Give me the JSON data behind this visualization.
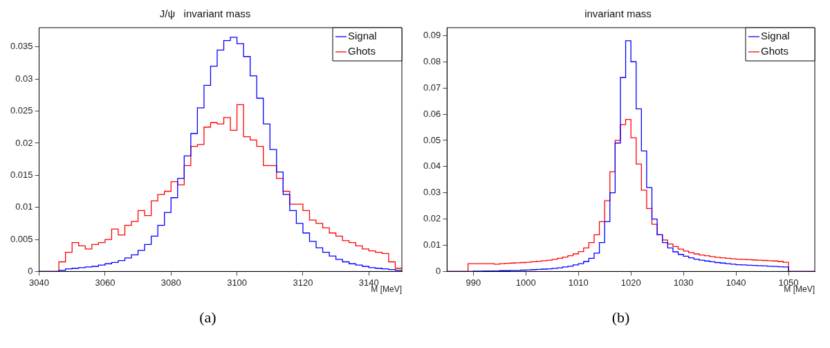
{
  "chart_data": [
    {
      "type": "histogram",
      "title": "J/ψ   invariant mass",
      "xlabel": "M [MeV]",
      "legend": "top right",
      "annotations": [
        "(a)"
      ],
      "xlim": [
        3040,
        3150
      ],
      "xticks": [
        3040,
        3060,
        3080,
        3100,
        3120,
        3140
      ],
      "ylim": [
        0,
        0.038
      ],
      "yticks": [
        0,
        0.005,
        0.01,
        0.015,
        0.02,
        0.025,
        0.03,
        0.035
      ],
      "bins": [
        3040,
        3042,
        3044,
        3046,
        3048,
        3050,
        3052,
        3054,
        3056,
        3058,
        3060,
        3062,
        3064,
        3066,
        3068,
        3070,
        3072,
        3074,
        3076,
        3078,
        3080,
        3082,
        3084,
        3086,
        3088,
        3090,
        3092,
        3094,
        3096,
        3098,
        3100,
        3102,
        3104,
        3106,
        3108,
        3110,
        3112,
        3114,
        3116,
        3118,
        3120,
        3122,
        3124,
        3126,
        3128,
        3130,
        3132,
        3134,
        3136,
        3138,
        3140,
        3142,
        3144,
        3146,
        3148,
        3150
      ],
      "series": [
        {
          "name": "Signal",
          "color": "#0000ff",
          "values": [
            0,
            0,
            0,
            0.0002,
            0.0004,
            0.0005,
            0.0006,
            0.0007,
            0.0008,
            0.001,
            0.0012,
            0.0014,
            0.0017,
            0.0021,
            0.0026,
            0.0033,
            0.0042,
            0.0055,
            0.0072,
            0.0092,
            0.0115,
            0.0145,
            0.018,
            0.0215,
            0.0255,
            0.029,
            0.032,
            0.0345,
            0.036,
            0.0365,
            0.0355,
            0.0335,
            0.0305,
            0.027,
            0.023,
            0.019,
            0.0155,
            0.012,
            0.0095,
            0.0075,
            0.006,
            0.0047,
            0.0037,
            0.003,
            0.0024,
            0.0019,
            0.0015,
            0.0012,
            0.001,
            0.0008,
            0.0006,
            0.0005,
            0.0004,
            0.0003,
            0.0002
          ]
        },
        {
          "name": "Ghots",
          "color": "#ff0000",
          "values": [
            0,
            0,
            0,
            0.0015,
            0.003,
            0.0045,
            0.004,
            0.0035,
            0.0042,
            0.0045,
            0.005,
            0.0066,
            0.0057,
            0.0072,
            0.0078,
            0.0095,
            0.0087,
            0.011,
            0.012,
            0.0125,
            0.014,
            0.0135,
            0.0165,
            0.0195,
            0.0198,
            0.0225,
            0.0232,
            0.023,
            0.024,
            0.022,
            0.026,
            0.021,
            0.0205,
            0.0195,
            0.0165,
            0.0165,
            0.0145,
            0.0125,
            0.0105,
            0.0105,
            0.0095,
            0.008,
            0.0075,
            0.0068,
            0.006,
            0.0055,
            0.0048,
            0.0045,
            0.004,
            0.0035,
            0.0032,
            0.003,
            0.0028,
            0.0015,
            0.0005
          ]
        }
      ]
    },
    {
      "type": "histogram",
      "title": "invariant mass",
      "xlabel": "M [MeV]",
      "legend": "top right",
      "annotations": [
        "(b)"
      ],
      "xlim": [
        985,
        1055
      ],
      "xticks": [
        990,
        1000,
        1010,
        1020,
        1030,
        1040,
        1050
      ],
      "ylim": [
        0,
        0.093
      ],
      "yticks": [
        0,
        0.01,
        0.02,
        0.03,
        0.04,
        0.05,
        0.06,
        0.07,
        0.08,
        0.09
      ],
      "bins": [
        985,
        986,
        987,
        988,
        989,
        990,
        991,
        992,
        993,
        994,
        995,
        996,
        997,
        998,
        999,
        1000,
        1001,
        1002,
        1003,
        1004,
        1005,
        1006,
        1007,
        1008,
        1009,
        1010,
        1011,
        1012,
        1013,
        1014,
        1015,
        1016,
        1017,
        1018,
        1019,
        1020,
        1021,
        1022,
        1023,
        1024,
        1025,
        1026,
        1027,
        1028,
        1029,
        1030,
        1031,
        1032,
        1033,
        1034,
        1035,
        1036,
        1037,
        1038,
        1039,
        1040,
        1041,
        1042,
        1043,
        1044,
        1045,
        1046,
        1047,
        1048,
        1049,
        1050,
        1051,
        1052,
        1053,
        1054,
        1055
      ],
      "series": [
        {
          "name": "Signal",
          "color": "#0000ff",
          "values": [
            0,
            0,
            0,
            0,
            0,
            0.0001,
            0.0001,
            0.0002,
            0.0002,
            0.0002,
            0.0003,
            0.0003,
            0.0004,
            0.0004,
            0.0005,
            0.0006,
            0.0007,
            0.0008,
            0.0009,
            0.001,
            0.0012,
            0.0014,
            0.0017,
            0.002,
            0.0025,
            0.003,
            0.0038,
            0.005,
            0.007,
            0.011,
            0.019,
            0.03,
            0.049,
            0.074,
            0.088,
            0.08,
            0.062,
            0.046,
            0.032,
            0.02,
            0.014,
            0.011,
            0.009,
            0.0075,
            0.0065,
            0.0058,
            0.0052,
            0.0047,
            0.0043,
            0.004,
            0.0037,
            0.0034,
            0.0032,
            0.003,
            0.0028,
            0.0026,
            0.0025,
            0.0024,
            0.0023,
            0.0022,
            0.0021,
            0.002,
            0.0019,
            0.0018,
            0.0017,
            0,
            0,
            0,
            0,
            0
          ]
        },
        {
          "name": "Ghots",
          "color": "#ff0000",
          "values": [
            0,
            0,
            0,
            0,
            0.003,
            0.003,
            0.003,
            0.003,
            0.003,
            0.0028,
            0.003,
            0.0031,
            0.0032,
            0.0033,
            0.0034,
            0.0035,
            0.0037,
            0.0039,
            0.0041,
            0.0043,
            0.0046,
            0.005,
            0.0055,
            0.006,
            0.0067,
            0.0076,
            0.009,
            0.011,
            0.014,
            0.019,
            0.027,
            0.038,
            0.05,
            0.056,
            0.058,
            0.051,
            0.041,
            0.031,
            0.024,
            0.018,
            0.014,
            0.012,
            0.0105,
            0.0095,
            0.0085,
            0.0078,
            0.0072,
            0.0067,
            0.0063,
            0.006,
            0.0057,
            0.0054,
            0.0052,
            0.005,
            0.0048,
            0.0047,
            0.0046,
            0.0045,
            0.0044,
            0.0043,
            0.0042,
            0.0041,
            0.004,
            0.0038,
            0.0035,
            0,
            0,
            0,
            0,
            0
          ]
        }
      ]
    }
  ]
}
